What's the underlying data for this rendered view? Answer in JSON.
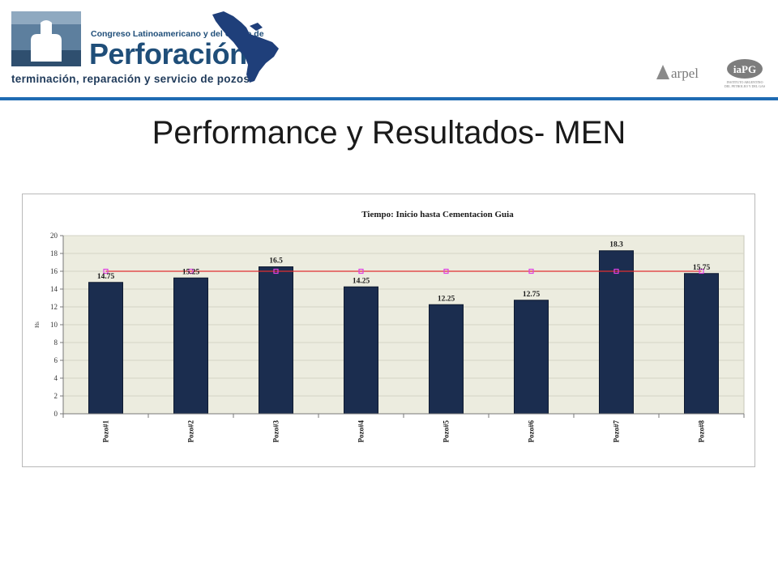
{
  "header": {
    "congress_line": "Congreso Latinoamericano y del Caribe de",
    "brand": "Perforación",
    "subtitle": "terminación, reparación y servicio de pozos",
    "arpel_label": "arpel",
    "iapg_label": "iaPG",
    "iapg_sub1": "INSTITUTO ARGENTINO",
    "iapg_sub2": "DEL PETROLEO Y DEL GAS"
  },
  "slide": {
    "title": "Performance y Resultados- MEN"
  },
  "colors": {
    "bar": "#1b2d4f",
    "reference_line": "#e03030",
    "reference_marker": "#e040e0",
    "plot_bg": "#ececdf",
    "header_rule": "#1f6bb3"
  },
  "chart_data": {
    "type": "bar",
    "title": "Tiempo: Inicio hasta Cementacion Guia",
    "ylabel": "Hs",
    "xlabel": "",
    "ylim": [
      0,
      20
    ],
    "yticks": [
      "0",
      "2",
      "4",
      "6",
      "8",
      "10",
      "12",
      "14",
      "16",
      "18",
      "20"
    ],
    "grid": true,
    "categories": [
      "Pozo#1",
      "Pozo#2",
      "Pozo#3",
      "Pozo#4",
      "Pozo#5",
      "Pozo#6",
      "Pozo#7",
      "Pozo#8"
    ],
    "values": [
      14.75,
      15.25,
      16.5,
      14.25,
      12.25,
      12.75,
      18.3,
      15.75
    ],
    "value_labels": [
      "14.75",
      "15.25",
      "16.5",
      "14.25",
      "12.25",
      "12.75",
      "18.3",
      "15.75"
    ],
    "reference_line": {
      "values": [
        16,
        16,
        16,
        16,
        16,
        16,
        16,
        16
      ]
    }
  }
}
